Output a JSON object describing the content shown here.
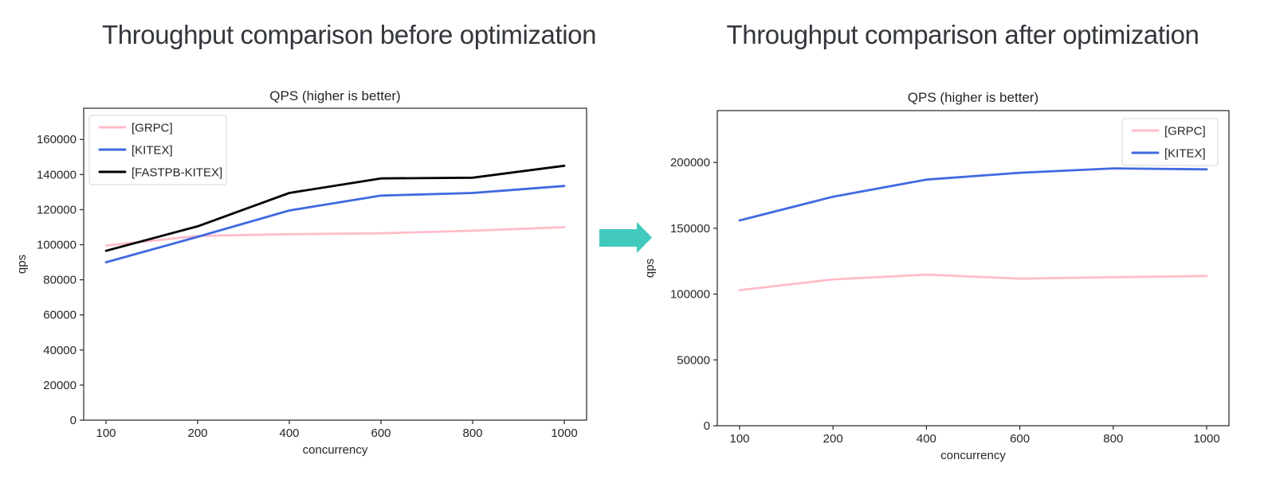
{
  "figures": {
    "before": {
      "title": "Throughput comparison before optimization"
    },
    "after": {
      "title": "Throughput comparison after optimization"
    }
  },
  "arrow": {
    "meaning": "before-to-after",
    "color": "#41c9bd"
  },
  "colors": {
    "title_text": "#33373d",
    "axis_text": "#262626",
    "spine": "#262626",
    "legend_border": "#d5d5d5",
    "legend_fill": "#ffffff"
  },
  "chart_data": [
    {
      "id": "before",
      "type": "line",
      "title": "QPS (higher is better)",
      "xlabel": "concurrency",
      "ylabel": "qps",
      "categories": [
        100,
        200,
        400,
        600,
        800,
        1000
      ],
      "series": [
        {
          "name": "[GRPC]",
          "color": "#ffbcc8",
          "values": [
            99500,
            105000,
            106000,
            106500,
            108000,
            110000
          ]
        },
        {
          "name": "[KITEX]",
          "color": "#4169e1",
          "values": [
            90000,
            104500,
            119500,
            128000,
            129500,
            133500
          ]
        },
        {
          "name": "[FASTPB-KITEX]",
          "color": "#000000",
          "values": [
            96500,
            110500,
            129500,
            137800,
            138200,
            145000
          ]
        }
      ],
      "ylim": [
        0,
        177800
      ],
      "yticks": [
        0,
        20000,
        40000,
        60000,
        80000,
        100000,
        120000,
        140000,
        160000
      ],
      "legend_position": "upper-left",
      "grid": false
    },
    {
      "id": "after",
      "type": "line",
      "title": "QPS (higher is better)",
      "xlabel": "concurrency",
      "ylabel": "qps",
      "categories": [
        100,
        200,
        400,
        600,
        800,
        1000
      ],
      "series": [
        {
          "name": "[GRPC]",
          "color": "#ffbcc8",
          "values": [
            103000,
            111200,
            114800,
            111800,
            112800,
            113800
          ]
        },
        {
          "name": "[KITEX]",
          "color": "#4169e1",
          "values": [
            156000,
            174000,
            187000,
            192200,
            195500,
            194800
          ]
        }
      ],
      "ylim": [
        0,
        239400
      ],
      "yticks": [
        0,
        50000,
        100000,
        150000,
        200000
      ],
      "legend_position": "upper-right",
      "grid": false
    }
  ]
}
